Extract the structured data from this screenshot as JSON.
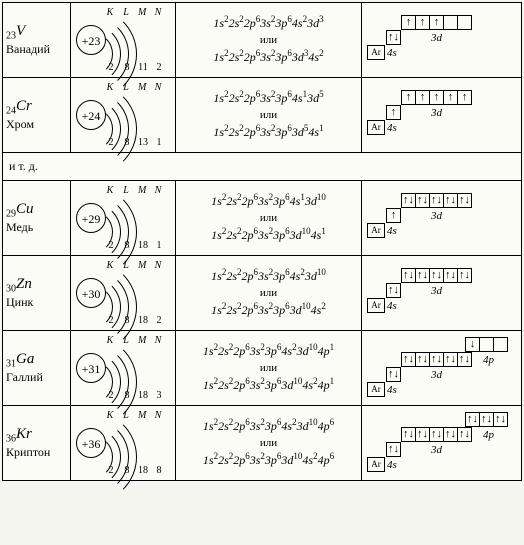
{
  "separator_text": "и т. д.",
  "ili": "или",
  "shells_header": [
    "K",
    "L",
    "M",
    "N"
  ],
  "elements": [
    {
      "z": "23",
      "sym": "V",
      "name": "Ванадий",
      "shell_counts": [
        "2",
        "8",
        "11",
        "2"
      ],
      "conf1": [
        [
          "1s",
          "2"
        ],
        [
          "2s",
          "2"
        ],
        [
          "2p",
          "6"
        ],
        [
          "3s",
          "2"
        ],
        [
          "3p",
          "6"
        ],
        [
          "4s",
          "2"
        ],
        [
          "3d",
          "3"
        ]
      ],
      "conf2": [
        [
          "1s",
          "2"
        ],
        [
          "2s",
          "2"
        ],
        [
          "2p",
          "6"
        ],
        [
          "3s",
          "2"
        ],
        [
          "3p",
          "6"
        ],
        [
          "3d",
          "3"
        ],
        [
          "4s",
          "2"
        ]
      ],
      "orb": {
        "d": [
          "↑",
          "↑",
          "↑",
          "",
          ""
        ],
        "p": null,
        "s": [
          "↑↓"
        ]
      }
    },
    {
      "z": "24",
      "sym": "Cr",
      "name": "Хром",
      "shell_counts": [
        "2",
        "8",
        "13",
        "1"
      ],
      "conf1": [
        [
          "1s",
          "2"
        ],
        [
          "2s",
          "2"
        ],
        [
          "2p",
          "6"
        ],
        [
          "3s",
          "2"
        ],
        [
          "3p",
          "6"
        ],
        [
          "4s",
          "1"
        ],
        [
          "3d",
          "5"
        ]
      ],
      "conf2": [
        [
          "1s",
          "2"
        ],
        [
          "2s",
          "2"
        ],
        [
          "2p",
          "6"
        ],
        [
          "3s",
          "2"
        ],
        [
          "3p",
          "6"
        ],
        [
          "3d",
          "5"
        ],
        [
          "4s",
          "1"
        ]
      ],
      "orb": {
        "d": [
          "↑",
          "↑",
          "↑",
          "↑",
          "↑"
        ],
        "p": null,
        "s": [
          "↑"
        ]
      }
    },
    {
      "z": "29",
      "sym": "Cu",
      "name": "Медь",
      "shell_counts": [
        "2",
        "8",
        "18",
        "1"
      ],
      "conf1": [
        [
          "1s",
          "2"
        ],
        [
          "2s",
          "2"
        ],
        [
          "2p",
          "6"
        ],
        [
          "3s",
          "2"
        ],
        [
          "3p",
          "6"
        ],
        [
          "4s",
          "1"
        ],
        [
          "3d",
          "10"
        ]
      ],
      "conf2": [
        [
          "1s",
          "2"
        ],
        [
          "2s",
          "2"
        ],
        [
          "2p",
          "6"
        ],
        [
          "3s",
          "2"
        ],
        [
          "3p",
          "6"
        ],
        [
          "3d",
          "10"
        ],
        [
          "4s",
          "1"
        ]
      ],
      "orb": {
        "d": [
          "↑↓",
          "↑↓",
          "↑↓",
          "↑↓",
          "↑↓"
        ],
        "p": null,
        "s": [
          "↑"
        ]
      }
    },
    {
      "z": "30",
      "sym": "Zn",
      "name": "Цинк",
      "shell_counts": [
        "2",
        "8",
        "18",
        "2"
      ],
      "conf1": [
        [
          "1s",
          "2"
        ],
        [
          "2s",
          "2"
        ],
        [
          "2p",
          "6"
        ],
        [
          "3s",
          "2"
        ],
        [
          "3p",
          "6"
        ],
        [
          "4s",
          "2"
        ],
        [
          "3d",
          "10"
        ]
      ],
      "conf2": [
        [
          "1s",
          "2"
        ],
        [
          "2s",
          "2"
        ],
        [
          "2p",
          "6"
        ],
        [
          "3s",
          "2"
        ],
        [
          "3p",
          "6"
        ],
        [
          "3d",
          "10"
        ],
        [
          "4s",
          "2"
        ]
      ],
      "orb": {
        "d": [
          "↑↓",
          "↑↓",
          "↑↓",
          "↑↓",
          "↑↓"
        ],
        "p": null,
        "s": [
          "↑↓"
        ]
      }
    },
    {
      "z": "31",
      "sym": "Ga",
      "name": "Галлий",
      "shell_counts": [
        "2",
        "8",
        "18",
        "3"
      ],
      "conf1": [
        [
          "1s",
          "2"
        ],
        [
          "2s",
          "2"
        ],
        [
          "2p",
          "6"
        ],
        [
          "3s",
          "2"
        ],
        [
          "3p",
          "6"
        ],
        [
          "4s",
          "2"
        ],
        [
          "3d",
          "10"
        ],
        [
          "4p",
          "1"
        ]
      ],
      "conf2": [
        [
          "1s",
          "2"
        ],
        [
          "2s",
          "2"
        ],
        [
          "2p",
          "6"
        ],
        [
          "3s",
          "2"
        ],
        [
          "3p",
          "6"
        ],
        [
          "3d",
          "10"
        ],
        [
          "4s",
          "2"
        ],
        [
          "4p",
          "1"
        ]
      ],
      "orb": {
        "d": [
          "↑↓",
          "↑↓",
          "↑↓",
          "↑↓",
          "↑↓"
        ],
        "p": [
          "↓",
          "",
          ""
        ],
        "s": [
          "↑↓"
        ]
      }
    },
    {
      "z": "36",
      "sym": "Kr",
      "name": "Криптон",
      "shell_counts": [
        "2",
        "8",
        "18",
        "8"
      ],
      "conf1": [
        [
          "1s",
          "2"
        ],
        [
          "2s",
          "2"
        ],
        [
          "2p",
          "6"
        ],
        [
          "3s",
          "2"
        ],
        [
          "3p",
          "6"
        ],
        [
          "4s",
          "2"
        ],
        [
          "3d",
          "10"
        ],
        [
          "4p",
          "6"
        ]
      ],
      "conf2": [
        [
          "1s",
          "2"
        ],
        [
          "2s",
          "2"
        ],
        [
          "2p",
          "6"
        ],
        [
          "3s",
          "2"
        ],
        [
          "3p",
          "6"
        ],
        [
          "3d",
          "10"
        ],
        [
          "4s",
          "2"
        ],
        [
          "4p",
          "6"
        ]
      ],
      "orb": {
        "d": [
          "↑↓",
          "↑↓",
          "↑↓",
          "↑↓",
          "↑↓"
        ],
        "p": [
          "↑↓",
          "↑↓",
          "↑↓"
        ],
        "s": [
          "↑↓"
        ]
      }
    }
  ],
  "labels": {
    "ar": "Ar",
    "s4": "4s",
    "d3": "3d",
    "p4": "4p"
  },
  "colors": {
    "border": "#000000",
    "bg": "#fcfcf7"
  }
}
